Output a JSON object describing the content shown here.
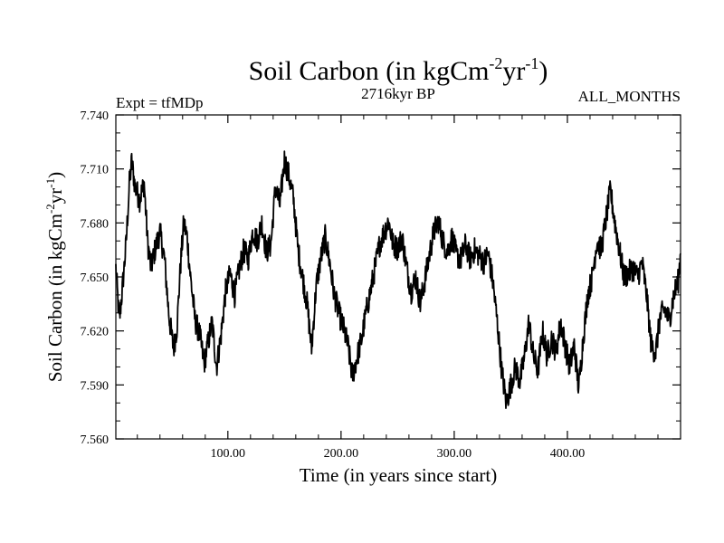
{
  "chart_data": {
    "type": "line",
    "title_main": "Soil Carbon (in kgCm",
    "title_sup1": "-2",
    "title_mid": "yr",
    "title_sup2": "-1",
    "title_end": ")",
    "subtitle_left": "Expt = tfMDp",
    "subtitle_center": "2716kyr BP",
    "subtitle_right": "ALL_MONTHS",
    "xlabel": "Time (in years since start)",
    "ylabel_main": "Soil Carbon (in kgCm",
    "ylabel_sup1": "-2",
    "ylabel_mid": "yr",
    "ylabel_sup2": "-1",
    "ylabel_end": ")",
    "xlim": [
      1,
      500
    ],
    "ylim": [
      7.56,
      7.74
    ],
    "xticks": [
      100,
      200,
      300,
      400
    ],
    "xtick_labels": [
      "100.00",
      "200.00",
      "300.00",
      "400.00"
    ],
    "yticks": [
      7.56,
      7.59,
      7.62,
      7.65,
      7.68,
      7.71,
      7.74
    ],
    "ytick_labels": [
      "7.560",
      "7.590",
      "7.620",
      "7.650",
      "7.680",
      "7.710",
      "7.740"
    ],
    "anchors": [
      [
        1,
        7.655
      ],
      [
        4,
        7.625
      ],
      [
        7,
        7.645
      ],
      [
        10,
        7.668
      ],
      [
        13,
        7.702
      ],
      [
        15,
        7.714
      ],
      [
        18,
        7.7
      ],
      [
        22,
        7.693
      ],
      [
        26,
        7.702
      ],
      [
        29,
        7.67
      ],
      [
        32,
        7.655
      ],
      [
        36,
        7.666
      ],
      [
        40,
        7.675
      ],
      [
        44,
        7.66
      ],
      [
        48,
        7.628
      ],
      [
        52,
        7.61
      ],
      [
        55,
        7.622
      ],
      [
        58,
        7.655
      ],
      [
        61,
        7.68
      ],
      [
        64,
        7.672
      ],
      [
        67,
        7.65
      ],
      [
        71,
        7.626
      ],
      [
        75,
        7.618
      ],
      [
        79,
        7.602
      ],
      [
        83,
        7.615
      ],
      [
        86,
        7.625
      ],
      [
        90,
        7.6
      ],
      [
        94,
        7.618
      ],
      [
        98,
        7.642
      ],
      [
        102,
        7.652
      ],
      [
        106,
        7.64
      ],
      [
        110,
        7.654
      ],
      [
        114,
        7.665
      ],
      [
        118,
        7.66
      ],
      [
        122,
        7.675
      ],
      [
        126,
        7.67
      ],
      [
        130,
        7.68
      ],
      [
        134,
        7.664
      ],
      [
        138,
        7.668
      ],
      [
        142,
        7.7
      ],
      [
        146,
        7.69
      ],
      [
        150,
        7.715
      ],
      [
        154,
        7.706
      ],
      [
        158,
        7.693
      ],
      [
        162,
        7.665
      ],
      [
        166,
        7.65
      ],
      [
        170,
        7.635
      ],
      [
        174,
        7.61
      ],
      [
        178,
        7.645
      ],
      [
        182,
        7.66
      ],
      [
        186,
        7.672
      ],
      [
        190,
        7.658
      ],
      [
        194,
        7.64
      ],
      [
        198,
        7.63
      ],
      [
        202,
        7.622
      ],
      [
        206,
        7.612
      ],
      [
        210,
        7.595
      ],
      [
        214,
        7.605
      ],
      [
        218,
        7.615
      ],
      [
        222,
        7.63
      ],
      [
        226,
        7.642
      ],
      [
        230,
        7.655
      ],
      [
        234,
        7.668
      ],
      [
        238,
        7.675
      ],
      [
        242,
        7.681
      ],
      [
        246,
        7.668
      ],
      [
        250,
        7.666
      ],
      [
        254,
        7.672
      ],
      [
        258,
        7.655
      ],
      [
        262,
        7.642
      ],
      [
        266,
        7.65
      ],
      [
        270,
        7.635
      ],
      [
        274,
        7.648
      ],
      [
        278,
        7.662
      ],
      [
        282,
        7.675
      ],
      [
        286,
        7.681
      ],
      [
        290,
        7.67
      ],
      [
        294,
        7.664
      ],
      [
        298,
        7.672
      ],
      [
        302,
        7.662
      ],
      [
        306,
        7.66
      ],
      [
        310,
        7.668
      ],
      [
        314,
        7.66
      ],
      [
        318,
        7.665
      ],
      [
        322,
        7.662
      ],
      [
        326,
        7.658
      ],
      [
        330,
        7.663
      ],
      [
        334,
        7.648
      ],
      [
        338,
        7.625
      ],
      [
        342,
        7.598
      ],
      [
        346,
        7.58
      ],
      [
        350,
        7.59
      ],
      [
        354,
        7.6
      ],
      [
        358,
        7.592
      ],
      [
        362,
        7.605
      ],
      [
        366,
        7.625
      ],
      [
        370,
        7.606
      ],
      [
        374,
        7.598
      ],
      [
        378,
        7.62
      ],
      [
        382,
        7.606
      ],
      [
        386,
        7.616
      ],
      [
        390,
        7.608
      ],
      [
        394,
        7.625
      ],
      [
        398,
        7.612
      ],
      [
        402,
        7.6
      ],
      [
        406,
        7.612
      ],
      [
        410,
        7.588
      ],
      [
        414,
        7.616
      ],
      [
        418,
        7.64
      ],
      [
        422,
        7.65
      ],
      [
        426,
        7.67
      ],
      [
        430,
        7.665
      ],
      [
        434,
        7.682
      ],
      [
        438,
        7.698
      ],
      [
        442,
        7.68
      ],
      [
        446,
        7.665
      ],
      [
        450,
        7.65
      ],
      [
        454,
        7.652
      ],
      [
        458,
        7.655
      ],
      [
        462,
        7.65
      ],
      [
        466,
        7.658
      ],
      [
        470,
        7.64
      ],
      [
        474,
        7.612
      ],
      [
        478,
        7.608
      ],
      [
        482,
        7.628
      ],
      [
        486,
        7.632
      ],
      [
        490,
        7.626
      ],
      [
        494,
        7.64
      ],
      [
        498,
        7.648
      ],
      [
        500,
        7.663
      ]
    ]
  }
}
